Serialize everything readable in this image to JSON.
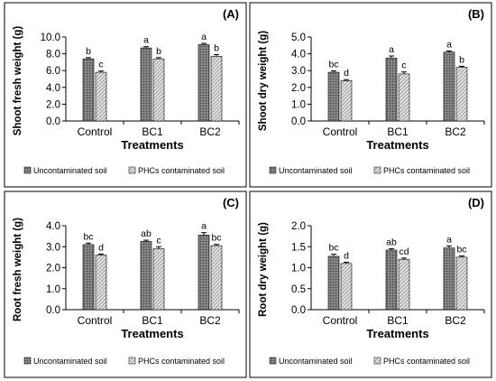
{
  "colors": {
    "series1_fill": "#7a7a7a",
    "series2_fill": "#d9d9d9",
    "bar_stroke": "#000000",
    "panel_border": "#000000"
  },
  "common": {
    "xlabel": "Treatments",
    "categories": [
      "Control",
      "BC1",
      "BC2"
    ],
    "series_names": [
      "Uncontaminated soil",
      "PHCs contaminated soil"
    ],
    "legend_position": "bottom",
    "grid": false
  },
  "chart_data": [
    {
      "panel_label": "(A)",
      "type": "bar",
      "ylabel": "Shoot fresh weight (g)",
      "xlabel": "Treatments",
      "ylim": [
        0,
        10
      ],
      "yticks": [
        "0.0",
        "2.0",
        "4.0",
        "6.0",
        "8.0",
        "10.0"
      ],
      "categories": [
        "Control",
        "BC1",
        "BC2"
      ],
      "series": [
        {
          "name": "Uncontaminated soil",
          "values": [
            7.4,
            8.7,
            9.1
          ],
          "errors": [
            0.15,
            0.15,
            0.15
          ],
          "letters": [
            "b",
            "a",
            "a"
          ]
        },
        {
          "name": "PHCs contaminated soil",
          "values": [
            5.8,
            7.4,
            7.7
          ],
          "errors": [
            0.15,
            0.15,
            0.2
          ],
          "letters": [
            "c",
            "b",
            "b"
          ]
        }
      ]
    },
    {
      "panel_label": "(B)",
      "type": "bar",
      "ylabel": "Shoot dry weight (g)",
      "xlabel": "Treatments",
      "ylim": [
        0,
        5
      ],
      "yticks": [
        "0.0",
        "1.0",
        "2.0",
        "3.0",
        "4.0",
        "5.0"
      ],
      "categories": [
        "Control",
        "BC1",
        "BC2"
      ],
      "series": [
        {
          "name": "Uncontaminated soil",
          "values": [
            2.9,
            3.75,
            4.1
          ],
          "errors": [
            0.08,
            0.12,
            0.07
          ],
          "letters": [
            "bc",
            "a",
            "a"
          ]
        },
        {
          "name": "PHCs contaminated soil",
          "values": [
            2.4,
            2.8,
            3.2
          ],
          "errors": [
            0.06,
            0.12,
            0.06
          ],
          "letters": [
            "d",
            "c",
            "b"
          ]
        }
      ]
    },
    {
      "panel_label": "(C)",
      "type": "bar",
      "ylabel": "Root fresh weight (g)",
      "xlabel": "Treatments",
      "ylim": [
        0,
        4
      ],
      "yticks": [
        "0.0",
        "1.0",
        "2.0",
        "3.0",
        "4.0"
      ],
      "categories": [
        "Control",
        "BC1",
        "BC2"
      ],
      "series": [
        {
          "name": "Uncontaminated soil",
          "values": [
            3.1,
            3.25,
            3.55
          ],
          "errors": [
            0.07,
            0.06,
            0.12
          ],
          "letters": [
            "bc",
            "ab",
            "a"
          ]
        },
        {
          "name": "PHCs contaminated soil",
          "values": [
            2.6,
            2.9,
            3.05
          ],
          "errors": [
            0.05,
            0.1,
            0.06
          ],
          "letters": [
            "d",
            "c",
            "bc"
          ]
        }
      ]
    },
    {
      "panel_label": "(D)",
      "type": "bar",
      "ylabel": "Root dry weight (g)",
      "xlabel": "Treatments",
      "ylim": [
        0,
        2
      ],
      "yticks": [
        "0.0",
        "0.5",
        "1.0",
        "1.5",
        "2.0"
      ],
      "categories": [
        "Control",
        "BC1",
        "BC2"
      ],
      "series": [
        {
          "name": "Uncontaminated soil",
          "values": [
            1.27,
            1.42,
            1.47
          ],
          "errors": [
            0.05,
            0.03,
            0.05
          ],
          "letters": [
            "bc",
            "ab",
            "a"
          ]
        },
        {
          "name": "PHCs contaminated soil",
          "values": [
            1.1,
            1.2,
            1.25
          ],
          "errors": [
            0.03,
            0.03,
            0.03
          ],
          "letters": [
            "d",
            "cd",
            "bc"
          ]
        }
      ]
    }
  ]
}
